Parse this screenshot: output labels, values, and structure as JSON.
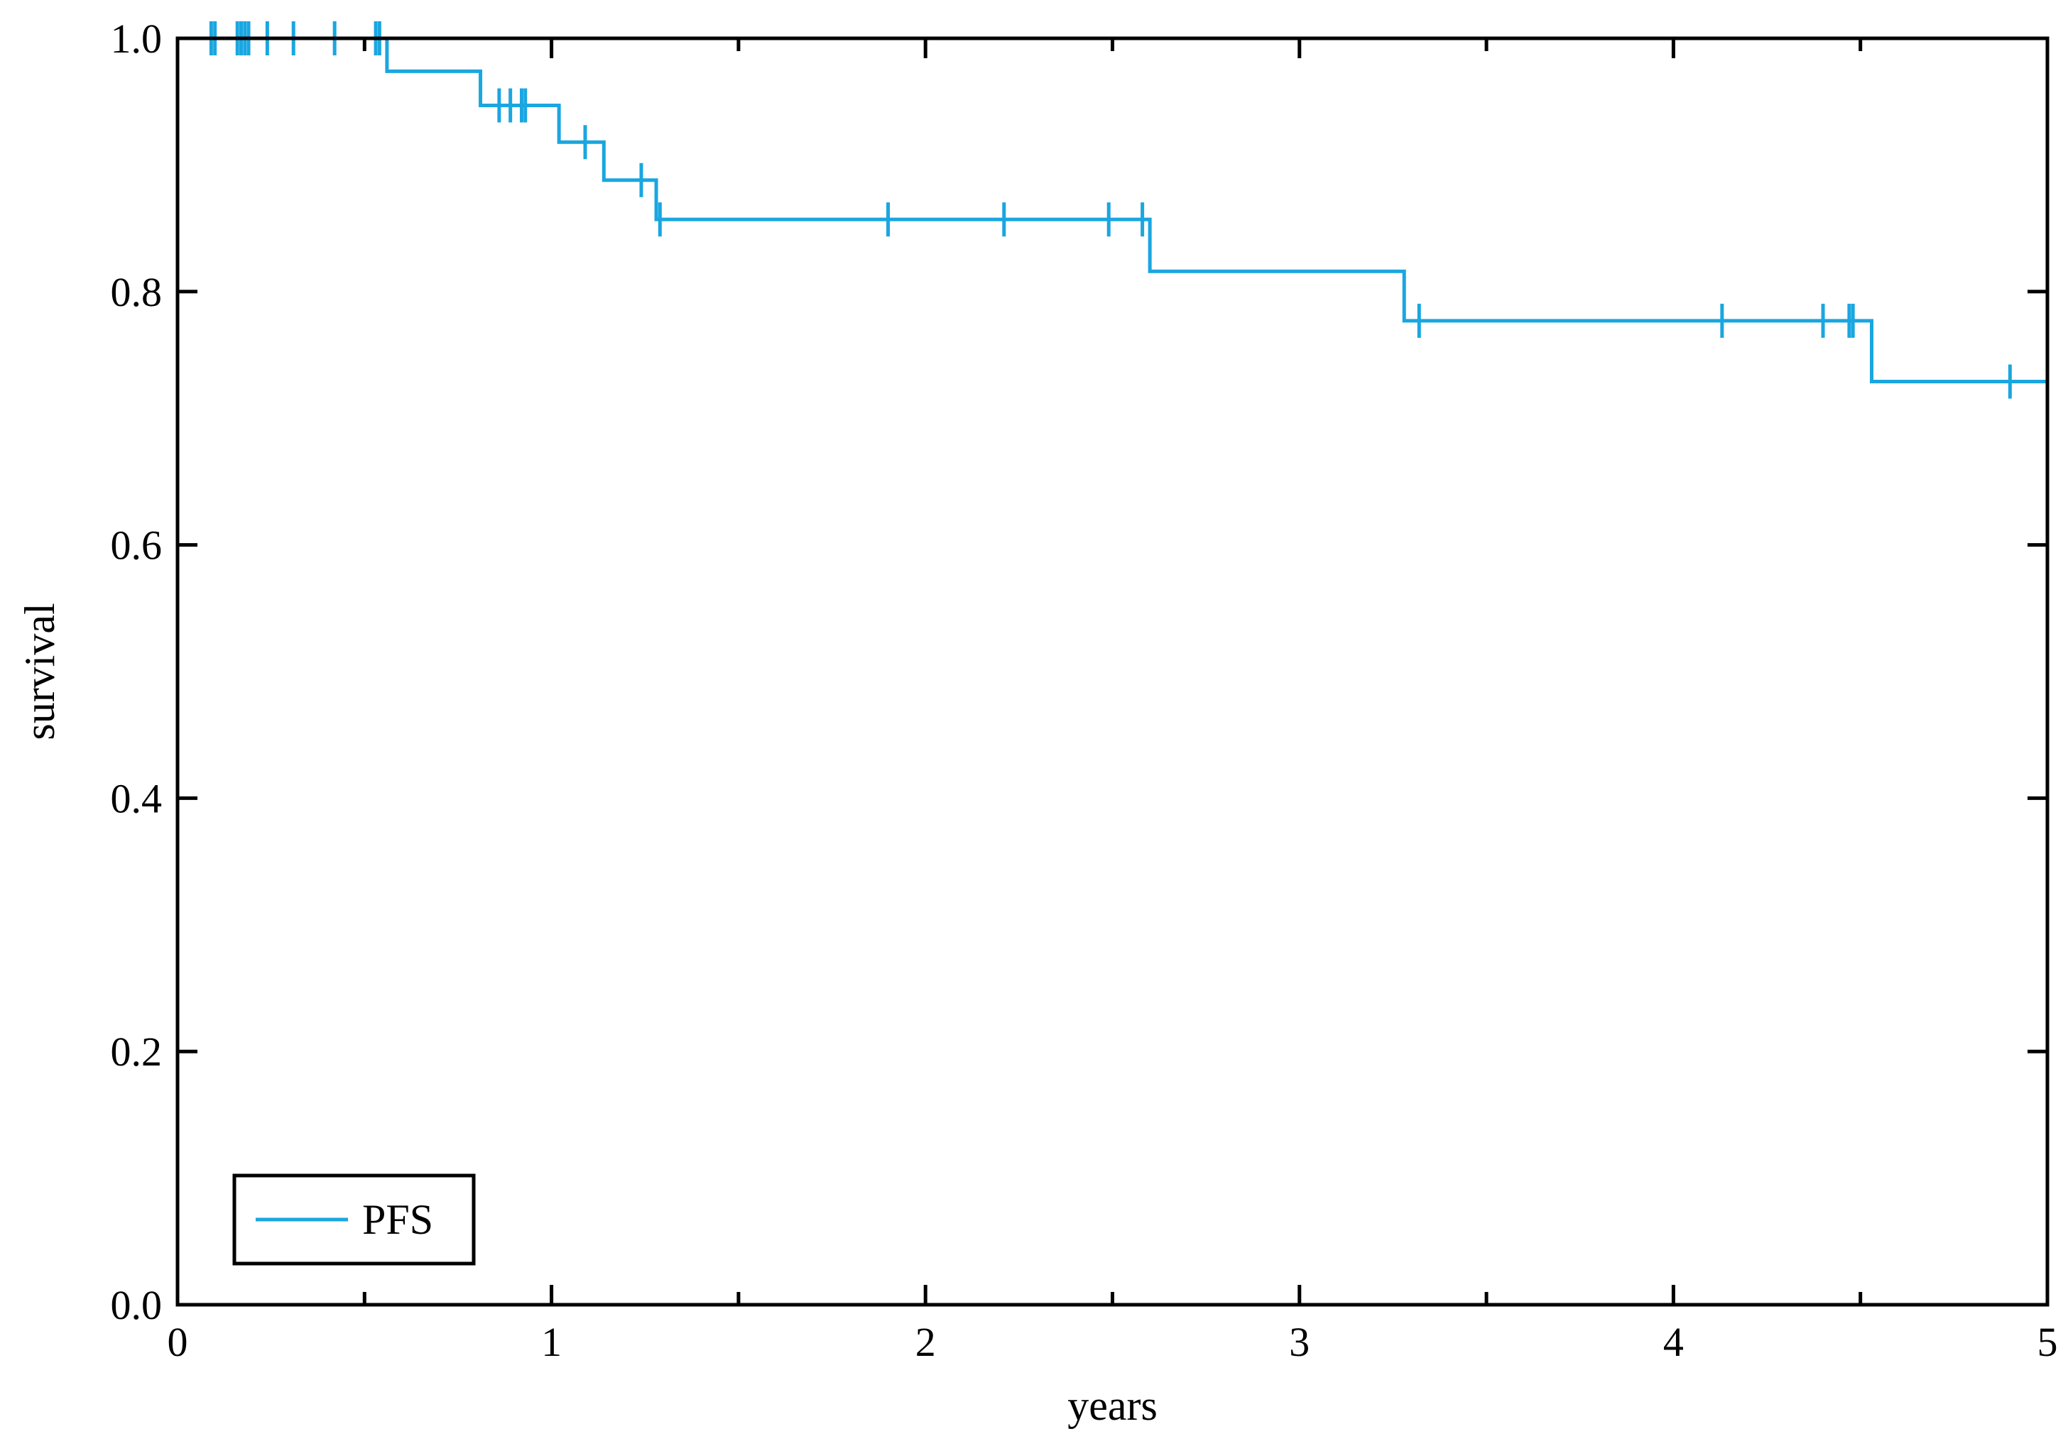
{
  "chart_data": {
    "type": "line",
    "xlabel": "years",
    "ylabel": "survival",
    "xlim": [
      0,
      5
    ],
    "ylim": [
      0.0,
      1.0
    ],
    "xticks": [
      0,
      1,
      2,
      3,
      4,
      5
    ],
    "xtick_labels": [
      "0",
      "1",
      "2",
      "3",
      "4",
      "5"
    ],
    "yticks": [
      0.0,
      0.2,
      0.4,
      0.6,
      0.8,
      1.0
    ],
    "ytick_labels": [
      "0.0",
      "0.2",
      "0.4",
      "0.6",
      "0.8",
      "1.0"
    ],
    "grid": false,
    "legend": {
      "placement": "bottom-left",
      "entries": [
        "PFS"
      ]
    },
    "series": [
      {
        "name": "PFS",
        "color": "#1aa6e0",
        "style": "step",
        "steps": [
          {
            "x": 0.0,
            "y": 1.0
          },
          {
            "x": 0.56,
            "y": 0.974
          },
          {
            "x": 0.81,
            "y": 0.947
          },
          {
            "x": 1.02,
            "y": 0.918
          },
          {
            "x": 1.14,
            "y": 0.888
          },
          {
            "x": 1.28,
            "y": 0.857
          },
          {
            "x": 2.6,
            "y": 0.816
          },
          {
            "x": 3.28,
            "y": 0.777
          },
          {
            "x": 4.53,
            "y": 0.729
          }
        ],
        "x_end": 5.0,
        "censored": [
          {
            "x": 0.09,
            "y": 1.0
          },
          {
            "x": 0.1,
            "y": 1.0
          },
          {
            "x": 0.16,
            "y": 1.0
          },
          {
            "x": 0.17,
            "y": 1.0
          },
          {
            "x": 0.18,
            "y": 1.0
          },
          {
            "x": 0.19,
            "y": 1.0
          },
          {
            "x": 0.24,
            "y": 1.0
          },
          {
            "x": 0.31,
            "y": 1.0
          },
          {
            "x": 0.42,
            "y": 1.0
          },
          {
            "x": 0.53,
            "y": 1.0
          },
          {
            "x": 0.54,
            "y": 1.0
          },
          {
            "x": 0.86,
            "y": 0.947
          },
          {
            "x": 0.89,
            "y": 0.947
          },
          {
            "x": 0.92,
            "y": 0.947
          },
          {
            "x": 0.93,
            "y": 0.947
          },
          {
            "x": 1.09,
            "y": 0.918
          },
          {
            "x": 1.24,
            "y": 0.888
          },
          {
            "x": 1.29,
            "y": 0.857
          },
          {
            "x": 1.9,
            "y": 0.857
          },
          {
            "x": 2.21,
            "y": 0.857
          },
          {
            "x": 2.49,
            "y": 0.857
          },
          {
            "x": 2.58,
            "y": 0.857
          },
          {
            "x": 3.32,
            "y": 0.777
          },
          {
            "x": 4.13,
            "y": 0.777
          },
          {
            "x": 4.4,
            "y": 0.777
          },
          {
            "x": 4.47,
            "y": 0.777
          },
          {
            "x": 4.48,
            "y": 0.777
          },
          {
            "x": 4.9,
            "y": 0.729
          },
          {
            "x": 5.0,
            "y": 0.729
          }
        ]
      }
    ]
  }
}
